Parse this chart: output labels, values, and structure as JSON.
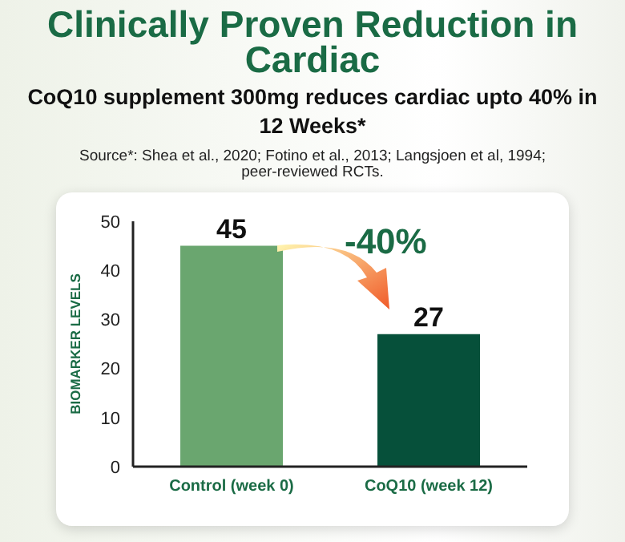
{
  "chart_data": {
    "type": "bar",
    "title": "Clinically Proven Reduction in Cardiac",
    "subtitle": "CoQ10 supplement 300mg reduces cardiac upto 40% in 12 Weeks*",
    "annotations": [
      "Source*: Shea et al., 2020; Fotino et al., 2013; Langsjoen et al, 1994; peer-reviewed RCTs.",
      "-40%"
    ],
    "ylabel": "BIOMARKER LEVELS",
    "categories": [
      "Control (week 0)",
      "CoQ10 (week 12)"
    ],
    "values": [
      45,
      27
    ],
    "colors": [
      "#6aa66f",
      "#06503a"
    ],
    "ylim": [
      0,
      50
    ],
    "yticks": [
      0,
      10,
      20,
      30,
      40,
      50
    ],
    "data_labels": true
  }
}
